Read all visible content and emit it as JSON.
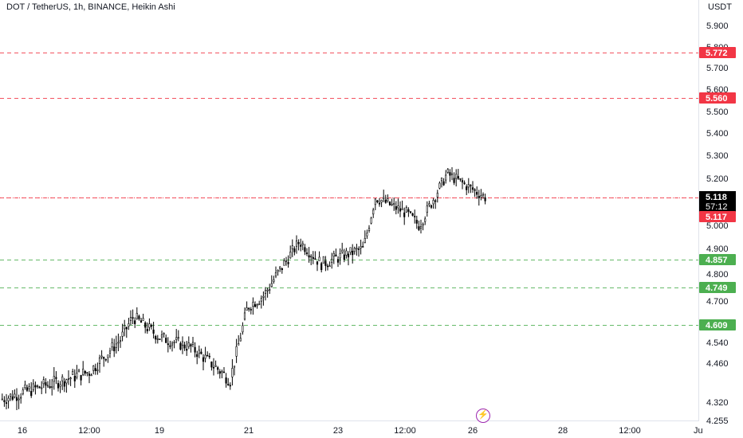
{
  "header": {
    "title": "DOT / TetherUS, 1h, BINANCE, Heikin Ashi",
    "currency": "USDT"
  },
  "price_axis": {
    "ticks": [
      5.9,
      5.8,
      5.7,
      5.6,
      5.5,
      5.4,
      5.3,
      5.2,
      5.0,
      4.9,
      4.8,
      4.7,
      4.54,
      4.46,
      4.32,
      4.255
    ],
    "tick_labels": [
      "5.900",
      "5.800",
      "5.700",
      "5.600",
      "5.500",
      "5.400",
      "5.300",
      "5.200",
      "5.000",
      "4.900",
      "4.800",
      "4.700",
      "4.540",
      "4.460",
      "4.320",
      "4.255"
    ]
  },
  "time_axis": {
    "labels": [
      "16",
      "12:00",
      "19",
      "21",
      "23",
      "12:00",
      "26",
      "28",
      "12:00",
      "Ju"
    ]
  },
  "current_price": {
    "value": "5.118",
    "countdown": "57:12",
    "color": "#000000"
  },
  "colors": {
    "resistance": "#f23645",
    "support": "#4caf50",
    "candles": "#000000",
    "current": "#000000"
  },
  "icons": {
    "event_marker": "lightning-icon"
  },
  "chart_data": {
    "type": "candlestick",
    "title": "DOT / TetherUS, 1h, BINANCE, Heikin Ashi",
    "xlabel": "",
    "ylabel": "USDT",
    "grid": false,
    "horizontal_levels": [
      {
        "value": 5.772,
        "label": "5.772",
        "kind": "resistance"
      },
      {
        "value": 5.56,
        "label": "5.560",
        "kind": "resistance"
      },
      {
        "value": 5.117,
        "label": "5.117",
        "kind": "resistance"
      },
      {
        "value": 4.857,
        "label": "4.857",
        "kind": "support"
      },
      {
        "value": 4.749,
        "label": "4.749",
        "kind": "support"
      },
      {
        "value": 4.609,
        "label": "4.609",
        "kind": "support"
      }
    ],
    "price_path": [
      {
        "t": "16",
        "close": 4.33
      },
      {
        "t": "16 12:00",
        "close": 4.43
      },
      {
        "t": "18",
        "close": 4.55
      },
      {
        "t": "18 18:00",
        "close": 4.64
      },
      {
        "t": "19",
        "close": 4.56
      },
      {
        "t": "20",
        "close": 4.52
      },
      {
        "t": "20 18:00",
        "close": 4.4
      },
      {
        "t": "21",
        "close": 4.68
      },
      {
        "t": "21 18:00",
        "close": 4.72
      },
      {
        "t": "22",
        "close": 4.93
      },
      {
        "t": "22 12:00",
        "close": 4.84
      },
      {
        "t": "23",
        "close": 4.9
      },
      {
        "t": "23 12:00",
        "close": 5.12
      },
      {
        "t": "24",
        "close": 5.05
      },
      {
        "t": "24 12:00",
        "close": 5.0
      },
      {
        "t": "25",
        "close": 5.22
      },
      {
        "t": "26",
        "close": 5.12
      }
    ]
  }
}
